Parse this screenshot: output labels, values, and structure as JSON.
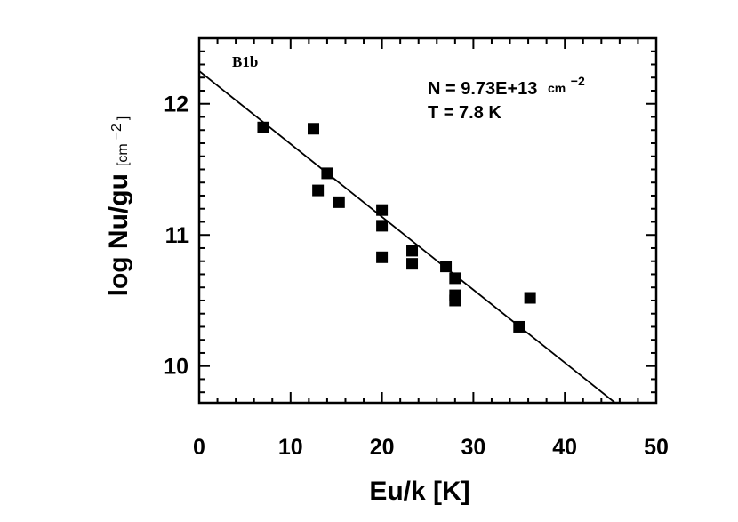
{
  "chart_data": {
    "type": "scatter",
    "panel_label": "B1b",
    "xlabel": "Eu/k [K]",
    "ylabel_main": "log Nu/gu",
    "ylabel_unit": "[cm",
    "ylabel_unit_exp": "−2",
    "ylabel_unit_close": "]",
    "xlim": [
      0,
      50
    ],
    "ylim": [
      9.72,
      12.5
    ],
    "x_ticks": [
      0,
      10,
      20,
      30,
      40,
      50
    ],
    "x_tick_labels": [
      "0",
      "10",
      "20",
      "30",
      "40",
      "50"
    ],
    "y_ticks": [
      10,
      11,
      12
    ],
    "y_tick_labels": [
      "10",
      "11",
      "12"
    ],
    "annotation_N": "N = 9.73E+13",
    "annotation_N_unit": "cm",
    "annotation_N_exp": "−2",
    "annotation_T": "T = 7.8 K",
    "points": [
      {
        "x": 7.0,
        "y": 11.82
      },
      {
        "x": 12.5,
        "y": 11.81
      },
      {
        "x": 14.0,
        "y": 11.47
      },
      {
        "x": 13.0,
        "y": 11.34
      },
      {
        "x": 15.3,
        "y": 11.25
      },
      {
        "x": 20.0,
        "y": 11.19
      },
      {
        "x": 20.0,
        "y": 11.07
      },
      {
        "x": 20.0,
        "y": 10.83
      },
      {
        "x": 23.3,
        "y": 10.88
      },
      {
        "x": 23.3,
        "y": 10.78
      },
      {
        "x": 27.0,
        "y": 10.76
      },
      {
        "x": 28.0,
        "y": 10.67
      },
      {
        "x": 28.0,
        "y": 10.54
      },
      {
        "x": 28.0,
        "y": 10.5
      },
      {
        "x": 35.0,
        "y": 10.3
      },
      {
        "x": 36.2,
        "y": 10.52
      }
    ],
    "fit_line": {
      "x": [
        0,
        45.5
      ],
      "y": [
        12.25,
        9.72
      ]
    },
    "grid": false
  }
}
